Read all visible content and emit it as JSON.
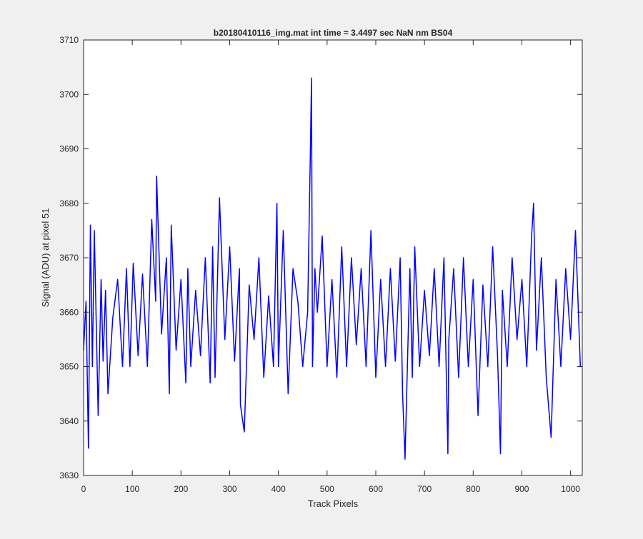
{
  "chart_data": {
    "type": "line",
    "title": "b20180410116_img.mat int time = 3.4497 sec  NaN nm BS04",
    "xlabel": "Track Pixels",
    "ylabel": "Signal (ADU) at pixel 51",
    "xlim": [
      0,
      1024
    ],
    "ylim": [
      3630,
      3710
    ],
    "xticks": [
      "0",
      "100",
      "200",
      "300",
      "400",
      "500",
      "600",
      "700",
      "800",
      "900",
      "1000"
    ],
    "yticks": [
      "3630",
      "3640",
      "3650",
      "3660",
      "3670",
      "3680",
      "3690",
      "3700",
      "3710"
    ],
    "grid": false,
    "box": true,
    "series": [
      {
        "color": "#0000ff",
        "description": "Noisy signal fluctuating around 3660 ADU (mostly 3645–3675), with a single spike near x≈468",
        "x": [
          0,
          5,
          10,
          14,
          18,
          22,
          30,
          36,
          40,
          45,
          50,
          60,
          70,
          80,
          88,
          95,
          102,
          112,
          121,
          131,
          140,
          148,
          150,
          160,
          170,
          176,
          180,
          190,
          200,
          210,
          214,
          220,
          230,
          240,
          250,
          260,
          265,
          270,
          279,
          290,
          300,
          310,
          320,
          322,
          330,
          340,
          350,
          360,
          370,
          380,
          390,
          397,
          400,
          410,
          420,
          430,
          440,
          450,
          460,
          466,
          468,
          470,
          475,
          480,
          490,
          500,
          510,
          520,
          530,
          540,
          550,
          560,
          570,
          580,
          590,
          600,
          610,
          620,
          630,
          640,
          650,
          655,
          660,
          670,
          675,
          680,
          690,
          700,
          710,
          720,
          730,
          740,
          748,
          750,
          760,
          770,
          780,
          790,
          800,
          810,
          820,
          830,
          840,
          850,
          856,
          860,
          870,
          880,
          890,
          900,
          910,
          920,
          924,
          930,
          940,
          950,
          960,
          970,
          980,
          990,
          1000,
          1010,
          1020
        ],
        "y": [
          3653,
          3662,
          3635,
          3676,
          3650,
          3675,
          3641,
          3666,
          3651,
          3664,
          3645,
          3659,
          3666,
          3650,
          3668,
          3650,
          3669,
          3652,
          3667,
          3650,
          3677,
          3662,
          3685,
          3656,
          3670,
          3645,
          3676,
          3653,
          3666,
          3647,
          3668,
          3650,
          3664,
          3652,
          3670,
          3647,
          3672,
          3648,
          3681,
          3655,
          3672,
          3651,
          3668,
          3643,
          3638,
          3665,
          3655,
          3670,
          3648,
          3663,
          3650,
          3680,
          3650,
          3675,
          3645,
          3668,
          3662,
          3650,
          3660,
          3691,
          3703,
          3650,
          3668,
          3660,
          3674,
          3650,
          3666,
          3648,
          3672,
          3650,
          3670,
          3654,
          3668,
          3650,
          3675,
          3648,
          3666,
          3650,
          3668,
          3651,
          3670,
          3645,
          3633,
          3668,
          3648,
          3672,
          3650,
          3664,
          3652,
          3668,
          3650,
          3670,
          3634,
          3655,
          3668,
          3648,
          3670,
          3650,
          3666,
          3641,
          3665,
          3650,
          3672,
          3652,
          3634,
          3664,
          3650,
          3670,
          3655,
          3666,
          3650,
          3674,
          3680,
          3653,
          3670,
          3648,
          3637,
          3666,
          3650,
          3668,
          3655,
          3675,
          3650
        ]
      }
    ]
  }
}
